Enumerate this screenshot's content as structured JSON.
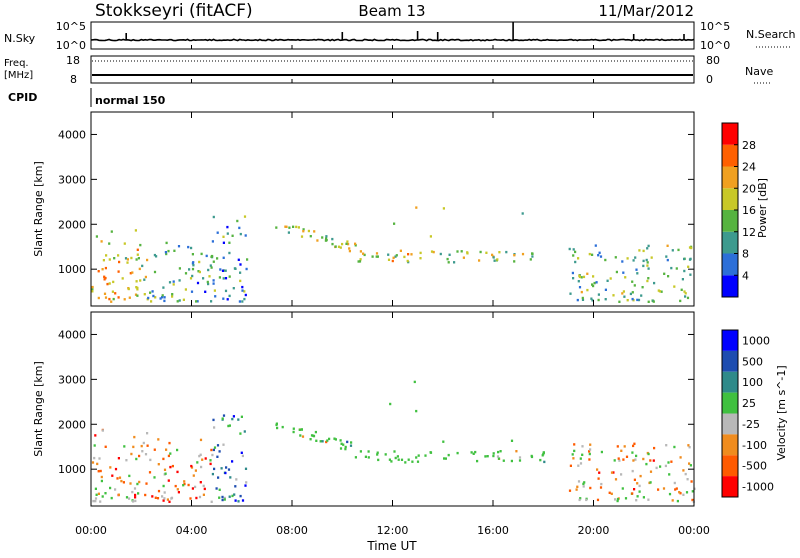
{
  "header": {
    "station": "Stokkseyri (fitACF)",
    "beam": "Beam 13",
    "date": "11/Mar/2012"
  },
  "strips": {
    "nsky_label": "N.Sky",
    "nsky_top_tick": "10^5",
    "nsky_bottom_tick": "10^0",
    "nsearch_label": "N.Search",
    "nsearch_top_tick": "10^5",
    "nsearch_bottom_tick": "10^0",
    "freq_label": "Freq.",
    "freq_unit": "[MHz]",
    "freq_top_tick": "18",
    "freq_bottom_tick": "8",
    "nave_label": "Nave",
    "nave_top_tick": "80",
    "nave_bottom_tick": "0",
    "cpid_label": "CPID",
    "cpid_value": "normal 150"
  },
  "colors": {
    "power_scale": [
      "#0000ff",
      "#2c6fd8",
      "#3d9a8e",
      "#56b340",
      "#c8c828",
      "#f0a020",
      "#ff6000",
      "#ff0000"
    ],
    "velocity_scale": [
      "#0000ff",
      "#1e4db0",
      "#2f8a8a",
      "#40c040",
      "#b8b8b8",
      "#f08c1e",
      "#ff5a00",
      "#ff0000"
    ]
  },
  "chart_data": [
    {
      "type": "heatmap",
      "name": "power-panel",
      "xlabel": "",
      "ylabel": "Slant Range [km]",
      "x_range_hours": [
        0,
        24
      ],
      "ylim": [
        180,
        4500
      ],
      "y_ticks": [
        "1000",
        "2000",
        "3000",
        "4000"
      ],
      "colorbar": {
        "label": "Power [dB]",
        "range": [
          0,
          32
        ],
        "ticks": [
          "4",
          "8",
          "12",
          "16",
          "20",
          "24",
          "28"
        ]
      },
      "echo_regions": [
        {
          "t0": 0.0,
          "t1": 2.2,
          "r0": 300,
          "r1": 1900,
          "level": 0.6
        },
        {
          "t0": 2.2,
          "t1": 4.8,
          "r0": 300,
          "r1": 1700,
          "level": 0.35
        },
        {
          "t0": 4.8,
          "t1": 6.2,
          "r0": 300,
          "r1": 2300,
          "level": 0.3
        },
        {
          "t0": 7.3,
          "t1": 10.5,
          "r0": 1500,
          "r1": 2100,
          "level": 0.5
        },
        {
          "t0": 10.5,
          "t1": 18.0,
          "r0": 1150,
          "r1": 1600,
          "level": 0.55
        },
        {
          "t0": 19.0,
          "t1": 24.0,
          "r0": 300,
          "r1": 1600,
          "level": 0.4
        }
      ]
    },
    {
      "type": "heatmap",
      "name": "velocity-panel",
      "xlabel": "Time UT",
      "ylabel": "Slant Range [km]",
      "x_range_hours": [
        0,
        24
      ],
      "x_ticks": [
        "00:00",
        "04:00",
        "08:00",
        "12:00",
        "16:00",
        "20:00",
        "00:00"
      ],
      "ylim": [
        180,
        4500
      ],
      "y_ticks": [
        "1000",
        "2000",
        "3000",
        "4000"
      ],
      "colorbar": {
        "label": "Velocity [m s^-1]",
        "ticks": [
          "1000",
          "500",
          "100",
          "25",
          "-25",
          "-100",
          "-500",
          "-1000"
        ]
      },
      "echo_regions": [
        {
          "t0": 0.0,
          "t1": 2.2,
          "r0": 300,
          "r1": 1900,
          "level": 0.35
        },
        {
          "t0": 2.2,
          "t1": 4.8,
          "r0": 300,
          "r1": 1700,
          "level": 0.3
        },
        {
          "t0": 4.8,
          "t1": 6.2,
          "r0": 300,
          "r1": 2300,
          "level": 0.7
        },
        {
          "t0": 7.3,
          "t1": 10.5,
          "r0": 1500,
          "r1": 2100,
          "level": 0.5
        },
        {
          "t0": 10.5,
          "t1": 18.0,
          "r0": 1150,
          "r1": 1600,
          "level": 0.5
        },
        {
          "t0": 19.0,
          "t1": 24.0,
          "r0": 300,
          "r1": 1600,
          "level": 0.35
        }
      ]
    }
  ]
}
